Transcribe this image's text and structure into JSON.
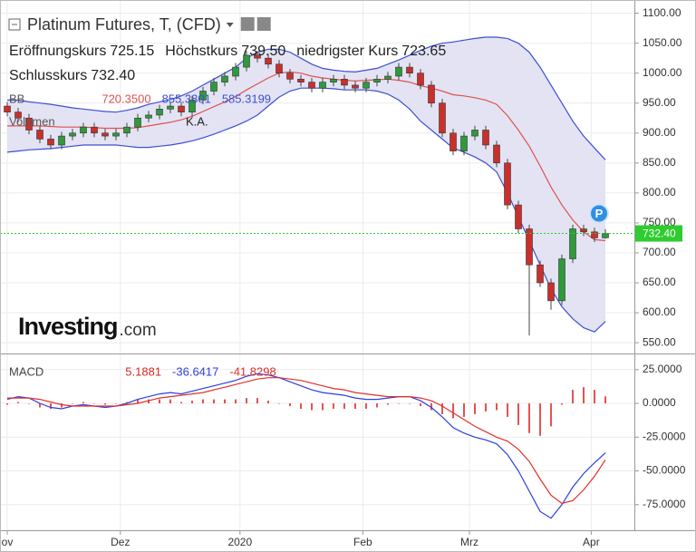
{
  "logo": {
    "brand": "Investing",
    "suffix": ".com"
  },
  "chart_data": [
    {
      "type": "candlestick",
      "title": "Platinum Futures, T, (CFD)",
      "legend_items": [
        {
          "name": "Eröffnungskurs",
          "value": "725.15"
        },
        {
          "name": "Höchstkurs",
          "value": "739.50"
        },
        {
          "name": "niedrigster Kurs",
          "value": "723.65"
        },
        {
          "name": "Schlusskurs",
          "value": "732.40"
        }
      ],
      "x": [
        0,
        1,
        2,
        3,
        4,
        5,
        6,
        7,
        8,
        9,
        10,
        11,
        12,
        13,
        14,
        15,
        16,
        17,
        18,
        19,
        20,
        21,
        22,
        23,
        24,
        25,
        26,
        27,
        28,
        29,
        30,
        31,
        32,
        33,
        34,
        35,
        36,
        37,
        38,
        39,
        40,
        41,
        42,
        43,
        44,
        45,
        46,
        47,
        48,
        49,
        50,
        51,
        52,
        53,
        54,
        55
      ],
      "open": [
        945,
        935,
        925,
        905,
        890,
        880,
        895,
        900,
        910,
        900,
        895,
        900,
        910,
        925,
        930,
        940,
        945,
        935,
        955,
        970,
        985,
        995,
        1010,
        1030,
        1025,
        1015,
        1000,
        990,
        985,
        975,
        985,
        990,
        980,
        975,
        985,
        990,
        995,
        1010,
        1000,
        980,
        950,
        900,
        870,
        895,
        905,
        880,
        850,
        780,
        740,
        680,
        650,
        620,
        690,
        740,
        735,
        725.15
      ],
      "high": [
        952,
        942,
        932,
        912,
        897,
        902,
        907,
        917,
        917,
        907,
        907,
        917,
        932,
        937,
        947,
        952,
        952,
        962,
        977,
        992,
        1002,
        1017,
        1037,
        1037,
        1032,
        1022,
        1007,
        997,
        992,
        992,
        997,
        997,
        987,
        992,
        997,
        1002,
        1017,
        1017,
        1007,
        987,
        957,
        907,
        902,
        912,
        912,
        887,
        857,
        787,
        747,
        687,
        657,
        697,
        747,
        747,
        742,
        739.5
      ],
      "low": [
        928,
        918,
        898,
        883,
        873,
        873,
        888,
        893,
        893,
        888,
        888,
        893,
        903,
        918,
        923,
        933,
        928,
        928,
        948,
        963,
        978,
        988,
        1003,
        1018,
        1008,
        993,
        983,
        978,
        968,
        968,
        978,
        973,
        968,
        968,
        978,
        983,
        988,
        993,
        973,
        943,
        893,
        863,
        863,
        888,
        873,
        843,
        773,
        733,
        562,
        643,
        605,
        613,
        683,
        728,
        718,
        723.65
      ],
      "close": [
        935,
        925,
        905,
        890,
        880,
        895,
        900,
        910,
        900,
        895,
        900,
        910,
        925,
        930,
        940,
        945,
        935,
        955,
        970,
        985,
        995,
        1010,
        1030,
        1025,
        1015,
        1000,
        990,
        985,
        975,
        985,
        990,
        980,
        975,
        985,
        990,
        995,
        1010,
        1000,
        980,
        950,
        900,
        870,
        895,
        905,
        880,
        850,
        780,
        740,
        680,
        650,
        620,
        690,
        740,
        735,
        725,
        732.4
      ],
      "up_color": "#2f9a3a",
      "down_color": "#c9302c",
      "bands": {
        "label": "BB",
        "fill": "#e3e3f4",
        "series": [
          {
            "color": "#e0524f",
            "value_label": "720.3500",
            "values": [
              912,
              912,
              912,
              912,
              911,
              910,
              910,
              910,
              909,
              908,
              908,
              908,
              909,
              912,
              915,
              918,
              922,
              928,
              936,
              944,
              952,
              961,
              972,
              982,
              992,
              1000,
              1002,
              1000,
              995,
              992,
              990,
              988,
              987,
              988,
              989,
              990,
              988,
              985,
              979,
              975,
              970,
              964,
              962,
              959,
              955,
              948,
              929,
              905,
              878,
              845,
              810,
              780,
              755,
              735,
              722,
              720.35
            ]
          },
          {
            "color": "#3f4fd1",
            "value_label": "855.3801",
            "values": [
              955,
              955,
              952,
              950,
              948,
              945,
              942,
              940,
              938,
              936,
              935,
              938,
              942,
              948,
              952,
              956,
              962,
              970,
              980,
              990,
              1000,
              1010,
              1025,
              1035,
              1040,
              1040,
              1035,
              1025,
              1015,
              1008,
              1005,
              1003,
              1002,
              1005,
              1008,
              1015,
              1022,
              1030,
              1038,
              1045,
              1050,
              1052,
              1055,
              1058,
              1060,
              1060,
              1058,
              1050,
              1035,
              1010,
              980,
              950,
              920,
              895,
              875,
              855.3801
            ]
          },
          {
            "color": "#3f4fd1",
            "value_label": "585.3199",
            "values": [
              868,
              870,
              872,
              873,
              874,
              876,
              878,
              880,
              880,
              880,
              880,
              878,
              876,
              876,
              878,
              880,
              883,
              887,
              892,
              898,
              905,
              912,
              920,
              930,
              945,
              960,
              970,
              975,
              975,
              975,
              974,
              972,
              972,
              972,
              970,
              965,
              955,
              940,
              920,
              905,
              890,
              875,
              868,
              860,
              850,
              835,
              800,
              760,
              720,
              680,
              640,
              610,
              590,
              575,
              568,
              585.3199
            ]
          }
        ]
      },
      "volume": {
        "label": "Volumen",
        "value": "K.A."
      },
      "last_price": {
        "value": 732.4,
        "label": "732.40",
        "color": "#2ecc2e"
      },
      "badge": "P",
      "xlim": [
        -0.667,
        57.667
      ],
      "ylim": [
        535,
        1110
      ],
      "yticks": [
        {
          "value": 1100,
          "label": "1100.00"
        },
        {
          "value": 1050,
          "label": "1050.00"
        },
        {
          "value": 1000,
          "label": "1000.00"
        },
        {
          "value": 950,
          "label": "950.00"
        },
        {
          "value": 900,
          "label": "900.00"
        },
        {
          "value": 850,
          "label": "850.00"
        },
        {
          "value": 800,
          "label": "800.00"
        },
        {
          "value": 750,
          "label": "750.00"
        },
        {
          "value": 700,
          "label": "700.00"
        },
        {
          "value": 650,
          "label": "650.00"
        },
        {
          "value": 600,
          "label": "600.00"
        },
        {
          "value": 550,
          "label": "550.00"
        }
      ],
      "grid": true
    },
    {
      "type": "macd",
      "title": "MACD",
      "x": [
        0,
        1,
        2,
        3,
        4,
        5,
        6,
        7,
        8,
        9,
        10,
        11,
        12,
        13,
        14,
        15,
        16,
        17,
        18,
        19,
        20,
        21,
        22,
        23,
        24,
        25,
        26,
        27,
        28,
        29,
        30,
        31,
        32,
        33,
        34,
        35,
        36,
        37,
        38,
        39,
        40,
        41,
        42,
        43,
        44,
        45,
        46,
        47,
        48,
        49,
        50,
        51,
        52,
        53,
        54,
        55
      ],
      "histogram": {
        "color": "#e5534f",
        "value_label": "5.1881",
        "values": [
          -1,
          1,
          0,
          -3,
          -4,
          -3,
          0,
          1,
          0,
          -1,
          0,
          1,
          3,
          3,
          3,
          3,
          1,
          2,
          3,
          3,
          3,
          3,
          4,
          4,
          2,
          0,
          -2,
          -4,
          -5,
          -5,
          -4,
          -4,
          -4,
          -4,
          -3,
          -1,
          0,
          0,
          -2,
          -5,
          -8,
          -11,
          -10,
          -8,
          -6,
          -5,
          -10,
          -16,
          -22,
          -24,
          -17,
          -1,
          10,
          12,
          10,
          5.1881
        ]
      },
      "series": [
        {
          "color": "#2b3fe0",
          "value_label": "-36.6417",
          "values": [
            3,
            5,
            4,
            0,
            -3,
            -4,
            -2,
            -1,
            -2,
            -3,
            -2,
            0,
            3,
            5,
            7,
            8,
            7,
            9,
            11,
            13,
            15,
            17,
            20,
            22,
            21,
            19,
            16,
            13,
            10,
            8,
            7,
            6,
            4,
            3,
            3,
            4,
            5,
            5,
            2,
            -3,
            -10,
            -18,
            -22,
            -25,
            -27,
            -30,
            -38,
            -50,
            -65,
            -80,
            -85,
            -75,
            -62,
            -52,
            -44,
            -36.6417
          ]
        },
        {
          "color": "#e2302a",
          "value_label": "-41.8298",
          "values": [
            4,
            4,
            4,
            3,
            1,
            -1,
            -2,
            -2,
            -2,
            -2,
            -2,
            -1,
            0,
            2,
            4,
            5,
            6,
            7,
            8,
            10,
            12,
            14,
            16,
            18,
            19,
            19,
            18,
            17,
            15,
            13,
            11,
            10,
            8,
            7,
            6,
            5,
            5,
            5,
            4,
            2,
            -2,
            -7,
            -12,
            -17,
            -21,
            -25,
            -28,
            -34,
            -43,
            -56,
            -68,
            -74,
            -72,
            -64,
            -54,
            -41.8298
          ]
        }
      ],
      "xlim": [
        -0.667,
        57.667
      ],
      "ylim": [
        -90.6,
        35.6
      ],
      "yticks": [
        {
          "value": 25,
          "label": "25.0000"
        },
        {
          "value": 0,
          "label": "0.0000"
        },
        {
          "value": -25,
          "label": "-25.0000"
        },
        {
          "value": -50,
          "label": "-50.0000"
        },
        {
          "value": -75,
          "label": "-75.0000"
        }
      ],
      "xticks": [
        {
          "value": 0,
          "label": "ov"
        },
        {
          "value": 10.4,
          "label": "Dez"
        },
        {
          "value": 21.4,
          "label": "2020"
        },
        {
          "value": 32.7,
          "label": "Feb"
        },
        {
          "value": 42.5,
          "label": "Mrz"
        },
        {
          "value": 53.7,
          "label": "Apr"
        }
      ],
      "grid": true
    }
  ]
}
